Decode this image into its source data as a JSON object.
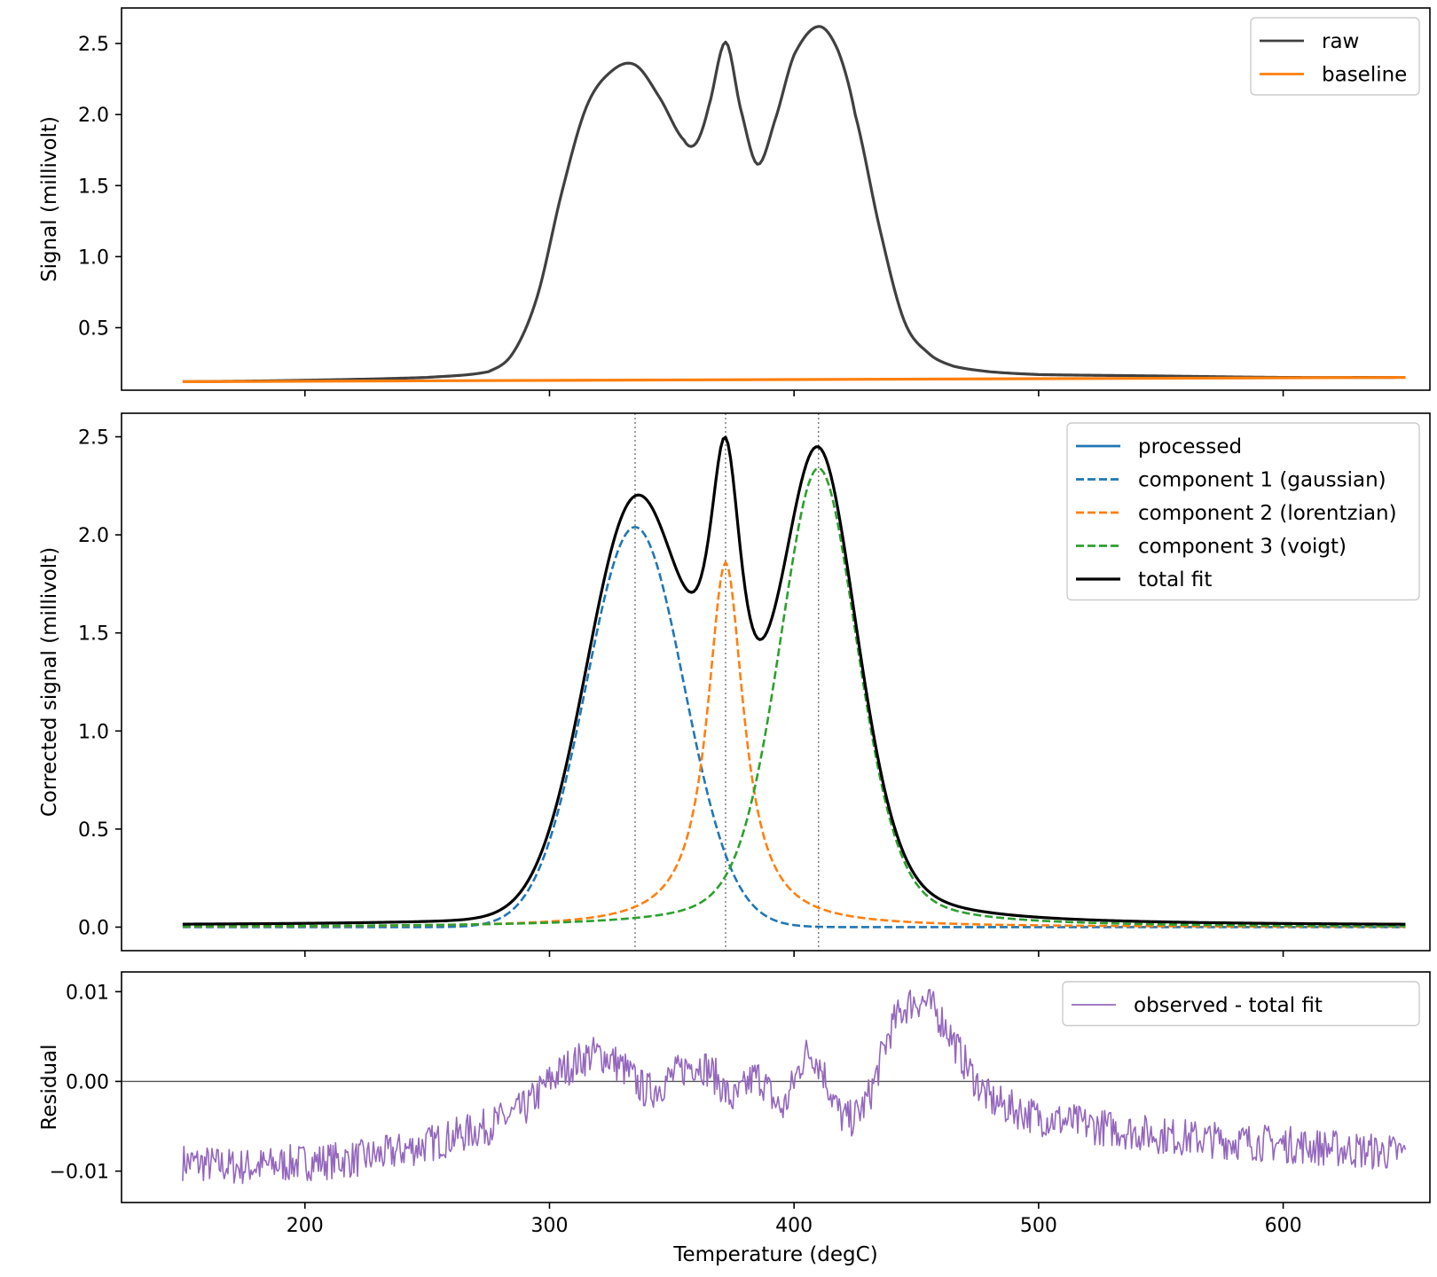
{
  "chart_data": [
    {
      "type": "line",
      "title": "",
      "xlabel": "",
      "ylabel": "Signal (millivolt)",
      "xlim": [
        125,
        660
      ],
      "ylim": [
        0.06,
        2.75
      ],
      "yticks": [
        0.5,
        1.0,
        1.5,
        2.0,
        2.5
      ],
      "ytick_labels": [
        "0.5",
        "1.0",
        "1.5",
        "2.0",
        "2.5"
      ],
      "xticks": [
        200,
        300,
        400,
        500,
        600
      ],
      "grid": false,
      "legend": "top-right",
      "series": [
        {
          "name": "raw",
          "color": "#404040",
          "x": [
            150,
            200,
            250,
            275,
            285,
            295,
            305,
            315,
            325,
            335,
            345,
            355,
            360,
            365,
            372,
            378,
            385,
            392,
            400,
            410,
            418,
            425,
            435,
            445,
            455,
            465,
            480,
            500,
            550,
            600,
            650
          ],
          "y": [
            0.12,
            0.13,
            0.15,
            0.19,
            0.32,
            0.72,
            1.45,
            2.05,
            2.3,
            2.35,
            2.12,
            1.82,
            1.8,
            2.05,
            2.51,
            2.05,
            1.65,
            1.95,
            2.42,
            2.62,
            2.45,
            2.0,
            1.2,
            0.55,
            0.32,
            0.23,
            0.19,
            0.17,
            0.16,
            0.15,
            0.15
          ]
        },
        {
          "name": "baseline",
          "color": "#ff7f0e",
          "x": [
            150,
            650
          ],
          "y": [
            0.12,
            0.15
          ]
        }
      ]
    },
    {
      "type": "line",
      "title": "",
      "xlabel": "",
      "ylabel": "Corrected signal (millivolt)",
      "xlim": [
        125,
        660
      ],
      "ylim": [
        -0.12,
        2.62
      ],
      "yticks": [
        0.0,
        0.5,
        1.0,
        1.5,
        2.0,
        2.5
      ],
      "ytick_labels": [
        "0.0",
        "0.5",
        "1.0",
        "1.5",
        "2.0",
        "2.5"
      ],
      "xticks": [
        200,
        300,
        400,
        500,
        600
      ],
      "peak_markers": [
        335,
        372,
        410
      ],
      "grid": false,
      "legend": "top-right",
      "series": [
        {
          "name": "processed",
          "color": "#1f77b4",
          "style": "solid",
          "model": "sum",
          "x_range": [
            150,
            650
          ]
        },
        {
          "name": "component 1 (gaussian)",
          "color": "#1f77b4",
          "style": "dashed",
          "model": "gaussian",
          "params": {
            "center": 335,
            "amplitude": 2.04,
            "sigma": 20
          }
        },
        {
          "name": "component 2 (lorentzian)",
          "color": "#ff7f0e",
          "style": "dashed",
          "model": "lorentzian",
          "params": {
            "center": 372,
            "amplitude": 1.86,
            "gamma": 9
          }
        },
        {
          "name": "component 3 (voigt)",
          "color": "#2ca02c",
          "style": "dashed",
          "model": "voigt",
          "params": {
            "center": 410,
            "amplitude": 2.34,
            "sigma": 14,
            "gamma": 5
          }
        },
        {
          "name": "total fit",
          "color": "#000000",
          "style": "solid",
          "model": "sum",
          "x_range": [
            150,
            650
          ]
        }
      ]
    },
    {
      "type": "line",
      "title": "",
      "xlabel": "Temperature (degC)",
      "ylabel": "Residual",
      "xlim": [
        125,
        660
      ],
      "ylim": [
        -0.0135,
        0.0122
      ],
      "yticks": [
        -0.01,
        0.0,
        0.01
      ],
      "ytick_labels": [
        "−0.01",
        "0.00",
        "0.01"
      ],
      "xticks": [
        200,
        300,
        400,
        500,
        600
      ],
      "xtick_labels": [
        "200",
        "300",
        "400",
        "500",
        "600"
      ],
      "zero_line": 0,
      "grid": false,
      "legend": "top-right",
      "series": [
        {
          "name": "observed - total fit",
          "color": "#9467bd",
          "x": [
            150,
            175,
            200,
            225,
            250,
            275,
            290,
            300,
            310,
            320,
            330,
            340,
            350,
            360,
            368,
            375,
            385,
            395,
            400,
            405,
            410,
            420,
            430,
            440,
            450,
            460,
            470,
            480,
            500,
            550,
            600,
            650
          ],
          "y": [
            -0.009,
            -0.0095,
            -0.009,
            -0.0085,
            -0.007,
            -0.005,
            -0.003,
            0.0,
            0.002,
            0.003,
            0.0015,
            -0.001,
            0.0005,
            0.002,
            0.0005,
            -0.002,
            0.0005,
            -0.003,
            0.0,
            0.003,
            0.002,
            -0.004,
            -0.002,
            0.006,
            0.009,
            0.007,
            0.002,
            -0.002,
            -0.004,
            -0.006,
            -0.007,
            -0.008
          ]
        }
      ]
    }
  ]
}
